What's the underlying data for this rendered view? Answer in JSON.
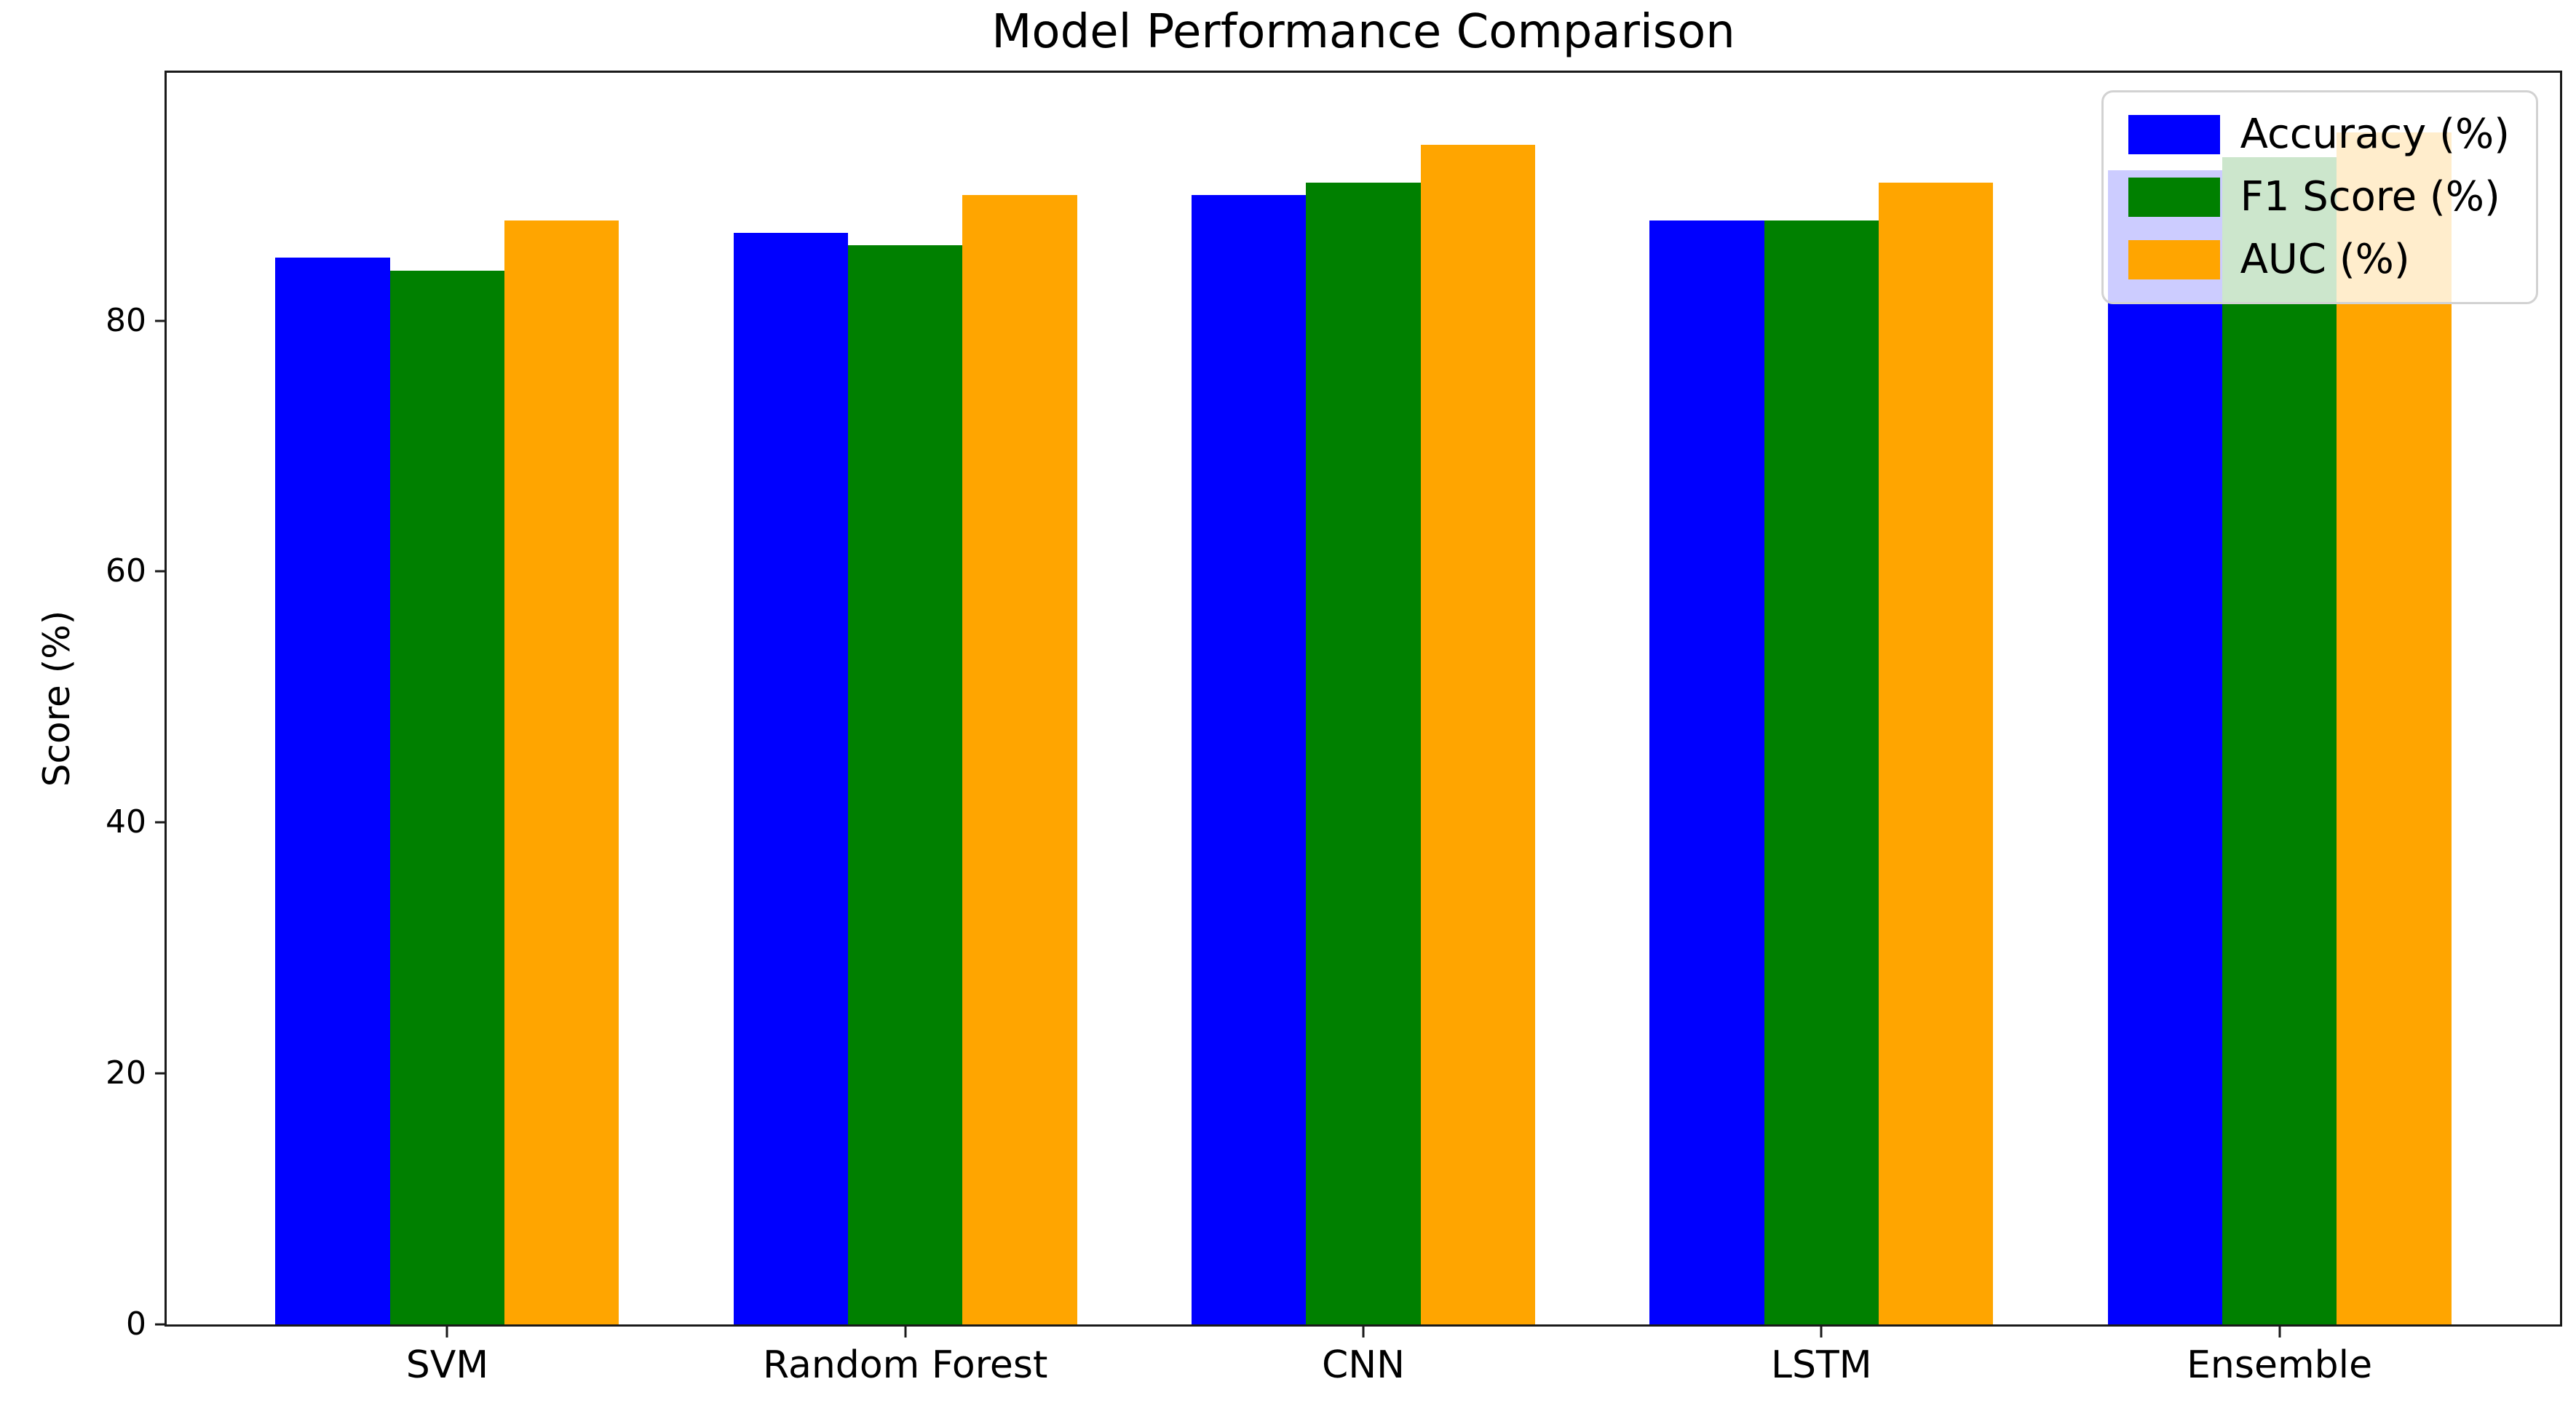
{
  "chart_data": {
    "type": "bar",
    "title": "Model Performance Comparison",
    "xlabel": "",
    "ylabel": "Score (%)",
    "categories": [
      "SVM",
      "Random Forest",
      "CNN",
      "LSTM",
      "Ensemble"
    ],
    "series": [
      {
        "name": "Accuracy (%)",
        "color": "#0000FF",
        "values": [
          85,
          87,
          90,
          88,
          92
        ]
      },
      {
        "name": "F1 Score (%)",
        "color": "#008000",
        "values": [
          84,
          86,
          91,
          88,
          93
        ]
      },
      {
        "name": "AUC (%)",
        "color": "#FFA500",
        "values": [
          88,
          90,
          94,
          91,
          95
        ]
      }
    ],
    "yticks": [
      0,
      20,
      40,
      60,
      80
    ],
    "ylim": [
      0,
      99.75
    ],
    "xlim": [
      -0.6125,
      4.6125
    ],
    "bar_width": 0.25,
    "grid": false,
    "legend_position": "upper right",
    "background_color": "#ffffff",
    "axis_color": "#1a1a1a"
  }
}
